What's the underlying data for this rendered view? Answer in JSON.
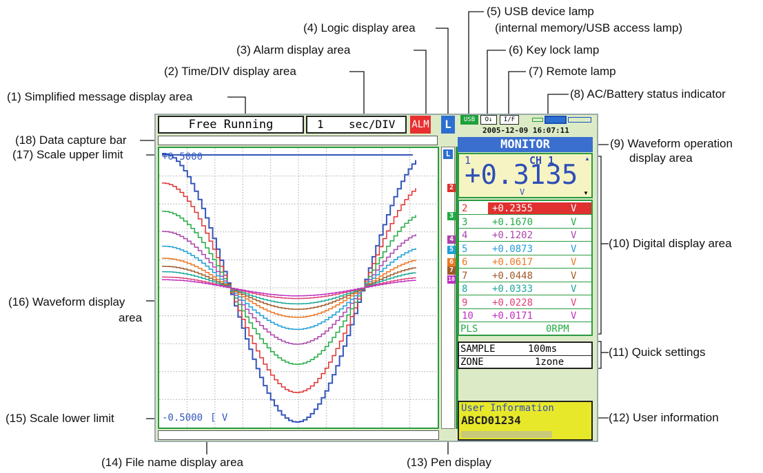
{
  "callouts": {
    "c1": "(1) Simplified message display area",
    "c2": "(2) Time/DIV display area",
    "c3": "(3) Alarm display area",
    "c4": "(4) Logic display area",
    "c5a": "(5) USB device lamp",
    "c5b": "(internal memory/USB access lamp)",
    "c6": "(6) Key lock lamp",
    "c7": "(7) Remote lamp",
    "c8": "(8) AC/Battery status indicator",
    "c9a": "(9) Waveform operation",
    "c9b": "display area",
    "c10": "(10) Digital display area",
    "c11": "(11) Quick settings",
    "c12": "(12) User information",
    "c13": "(13) Pen display",
    "c14": "(14) File name display area",
    "c15": "(15) Scale lower limit",
    "c16a": "(16) Waveform display",
    "c16b": "area",
    "c17": "(17) Scale upper limit",
    "c18": "(18) Data capture bar"
  },
  "status": {
    "message": "Free Running",
    "time_value": "1",
    "time_unit": "sec/DIV",
    "alarm": "ALM",
    "logic": "L",
    "usb": "USB",
    "keylock": "O↓",
    "remote": "I/F",
    "datetime": "2005-12-09 16:07:11"
  },
  "monitor": {
    "title": "MONITOR",
    "ch_num": "1",
    "ch_label": "CH 1",
    "value": "+0.3135",
    "unit": "V"
  },
  "channels": [
    {
      "num": "2",
      "value": "+0.2355",
      "unit": "V",
      "color": "#e03030"
    },
    {
      "num": "3",
      "value": "+0.1670",
      "unit": "V",
      "color": "#22aa44"
    },
    {
      "num": "4",
      "value": "+0.1202",
      "unit": "V",
      "color": "#aa44aa"
    },
    {
      "num": "5",
      "value": "+0.0873",
      "unit": "V",
      "color": "#1f9fd8"
    },
    {
      "num": "6",
      "value": "+0.0617",
      "unit": "V",
      "color": "#ee7722"
    },
    {
      "num": "7",
      "value": "+0.0448",
      "unit": "V",
      "color": "#a05a28"
    },
    {
      "num": "8",
      "value": "+0.0333",
      "unit": "V",
      "color": "#1aa89a"
    },
    {
      "num": "9",
      "value": "+0.0228",
      "unit": "V",
      "color": "#e0407a"
    },
    {
      "num": "10",
      "value": "+0.0171",
      "unit": "V",
      "color": "#c030c0"
    }
  ],
  "pls": {
    "label": "PLS",
    "value": "0RPM"
  },
  "quick": {
    "sample_label": "SAMPLE",
    "sample_value": "100ms",
    "zone_label": "ZONE",
    "zone_value": "1zone"
  },
  "user_info": {
    "title": "User Information",
    "value": "ABCD01234"
  },
  "scale": {
    "upper": "+0.5000",
    "lower": "-0.5000",
    "unit": "[ V"
  },
  "pens": [
    "L",
    "2",
    "3",
    "4",
    "5",
    "6",
    "7",
    "10"
  ],
  "colors": {
    "ch1": "#3355bb",
    "monitor_bar": "#3a6fd0",
    "alarm": "#e83030",
    "user_bg": "#e8e82a"
  }
}
